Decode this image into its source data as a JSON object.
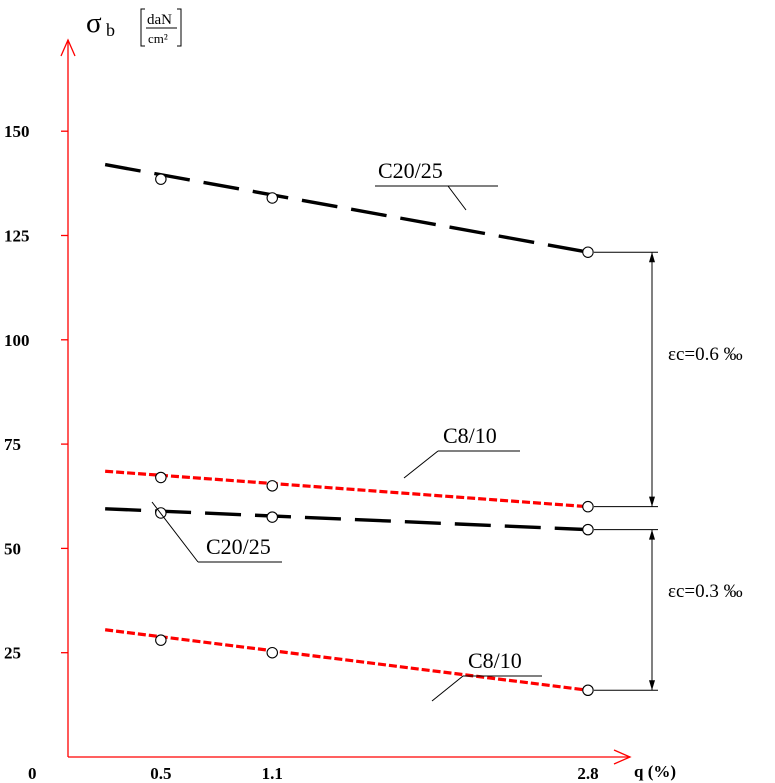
{
  "chart_data": {
    "type": "line",
    "xlabel": "q (%)",
    "ylabel": {
      "symbol": "σ",
      "subscript": "b",
      "unit_numerator": "daN",
      "unit_denominator": "cm²"
    },
    "origin_label": "0",
    "x_ticks": [
      0.5,
      1.1,
      2.8
    ],
    "y_ticks": [
      25,
      50,
      75,
      100,
      125,
      150
    ],
    "ylim": [
      0,
      160
    ],
    "grid": false,
    "series": [
      {
        "name": "C20/25",
        "strain_group": "εc=0.6 ‰",
        "style": "long-dash",
        "color": "#000000",
        "line_x": [
          0.2,
          2.8
        ],
        "line_y": [
          142,
          121
        ],
        "points": [
          {
            "x": 0.5,
            "y": 138.5
          },
          {
            "x": 1.1,
            "y": 134
          },
          {
            "x": 2.8,
            "y": 121
          }
        ]
      },
      {
        "name": "C8/10",
        "strain_group": "εc=0.6 ‰",
        "style": "short-dash",
        "color": "#ff0000",
        "line_x": [
          0.2,
          2.8
        ],
        "line_y": [
          68.5,
          60
        ],
        "points": [
          {
            "x": 0.5,
            "y": 67
          },
          {
            "x": 1.1,
            "y": 65
          },
          {
            "x": 2.8,
            "y": 60
          }
        ]
      },
      {
        "name": "C20/25",
        "strain_group": "εc=0.3 ‰",
        "style": "long-dash",
        "color": "#000000",
        "line_x": [
          0.2,
          2.8
        ],
        "line_y": [
          59.5,
          54.5
        ],
        "points": [
          {
            "x": 0.5,
            "y": 58.5
          },
          {
            "x": 1.1,
            "y": 57.5
          },
          {
            "x": 2.8,
            "y": 54.5
          }
        ]
      },
      {
        "name": "C8/10",
        "strain_group": "εc=0.3 ‰",
        "style": "short-dash",
        "color": "#ff0000",
        "line_x": [
          0.2,
          2.8
        ],
        "line_y": [
          30.5,
          16
        ],
        "points": [
          {
            "x": 0.5,
            "y": 28
          },
          {
            "x": 1.1,
            "y": 25
          },
          {
            "x": 2.8,
            "y": 16
          }
        ]
      }
    ],
    "strain_brackets": [
      {
        "label": "εc=0.6 ‰",
        "y_top": 121,
        "y_bottom": 60
      },
      {
        "label": "εc=0.3 ‰",
        "y_top": 54.5,
        "y_bottom": 16
      }
    ],
    "axis_color": "#ff0000"
  }
}
